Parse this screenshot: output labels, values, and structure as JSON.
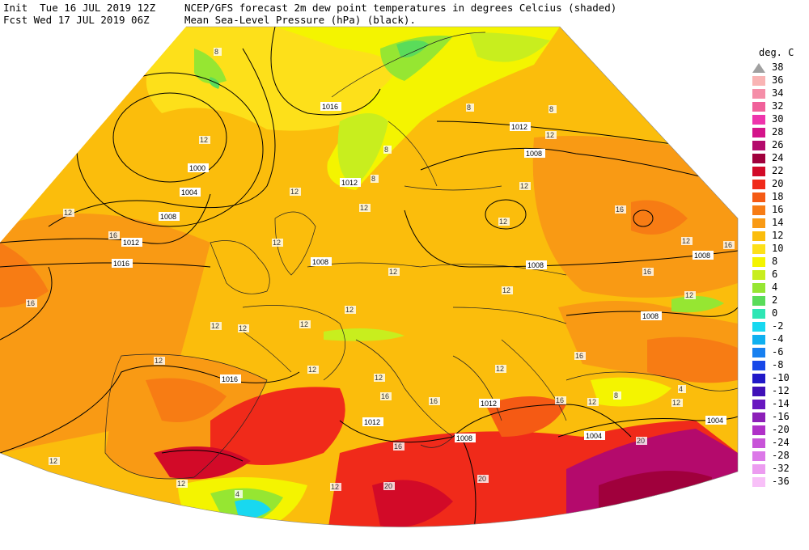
{
  "header": {
    "line1_left": "Init  Tue 16 JUL 2019 12Z",
    "line2_left": "Fcst Wed 17 JUL 2019 06Z",
    "line1_right": "NCEP/GFS forecast 2m dew point temperatures in degrees Celcius (shaded)",
    "line2_right": "Mean Sea-Level Pressure (hPa) (black)."
  },
  "legend": {
    "title": "deg. C",
    "entries": [
      {
        "label": "38",
        "color": "#a0a0a0",
        "triangle": true
      },
      {
        "label": "36",
        "color": "#f9b4b4"
      },
      {
        "label": "34",
        "color": "#f58ea8"
      },
      {
        "label": "32",
        "color": "#f0619a"
      },
      {
        "label": "30",
        "color": "#ee34ac"
      },
      {
        "label": "28",
        "color": "#d4148a"
      },
      {
        "label": "26",
        "color": "#b40a6c"
      },
      {
        "label": "24",
        "color": "#a0003c"
      },
      {
        "label": "22",
        "color": "#d20a28"
      },
      {
        "label": "20",
        "color": "#f02a1a"
      },
      {
        "label": "18",
        "color": "#f55a14"
      },
      {
        "label": "16",
        "color": "#f77c14"
      },
      {
        "label": "14",
        "color": "#f99a14"
      },
      {
        "label": "12",
        "color": "#fbbd0c"
      },
      {
        "label": "10",
        "color": "#fde01a"
      },
      {
        "label": "8",
        "color": "#f4f400"
      },
      {
        "label": "6",
        "color": "#c8ee1e"
      },
      {
        "label": "4",
        "color": "#96e632"
      },
      {
        "label": "2",
        "color": "#5adc5a"
      },
      {
        "label": "0",
        "color": "#2ee6b4"
      },
      {
        "label": "-2",
        "color": "#18d8f0"
      },
      {
        "label": "-4",
        "color": "#10b0f0"
      },
      {
        "label": "-6",
        "color": "#1880f0"
      },
      {
        "label": "-8",
        "color": "#1848e8"
      },
      {
        "label": "-10",
        "color": "#2018c8"
      },
      {
        "label": "-12",
        "color": "#4010b8"
      },
      {
        "label": "-14",
        "color": "#6818c0"
      },
      {
        "label": "-16",
        "color": "#8c20b8"
      },
      {
        "label": "-20",
        "color": "#b030c8"
      },
      {
        "label": "-24",
        "color": "#c854d8"
      },
      {
        "label": "-28",
        "color": "#dc78e8"
      },
      {
        "label": "-32",
        "color": "#ec9cf0"
      },
      {
        "label": "-36",
        "color": "#f8c0f8"
      }
    ]
  },
  "isobar_labels": [
    "1016",
    "1012",
    "1008",
    "1004",
    "1000",
    "1012",
    "1016",
    "1008",
    "1012",
    "1012",
    "1008",
    "1008",
    "1008",
    "1008",
    "1016",
    "1012",
    "1012",
    "1008",
    "1004",
    "1004"
  ],
  "dewpoint_labels": [
    "8",
    "12",
    "12",
    "16",
    "12",
    "16",
    "12",
    "12",
    "12",
    "12",
    "12",
    "12",
    "16",
    "12",
    "12",
    "12",
    "12",
    "8",
    "12",
    "16",
    "12",
    "12",
    "12",
    "16",
    "16",
    "12",
    "12",
    "12",
    "16",
    "16",
    "16",
    "20",
    "20",
    "12",
    "4",
    "12",
    "8",
    "12",
    "8",
    "16",
    "12",
    "4",
    "8",
    "12",
    "8",
    "20"
  ]
}
